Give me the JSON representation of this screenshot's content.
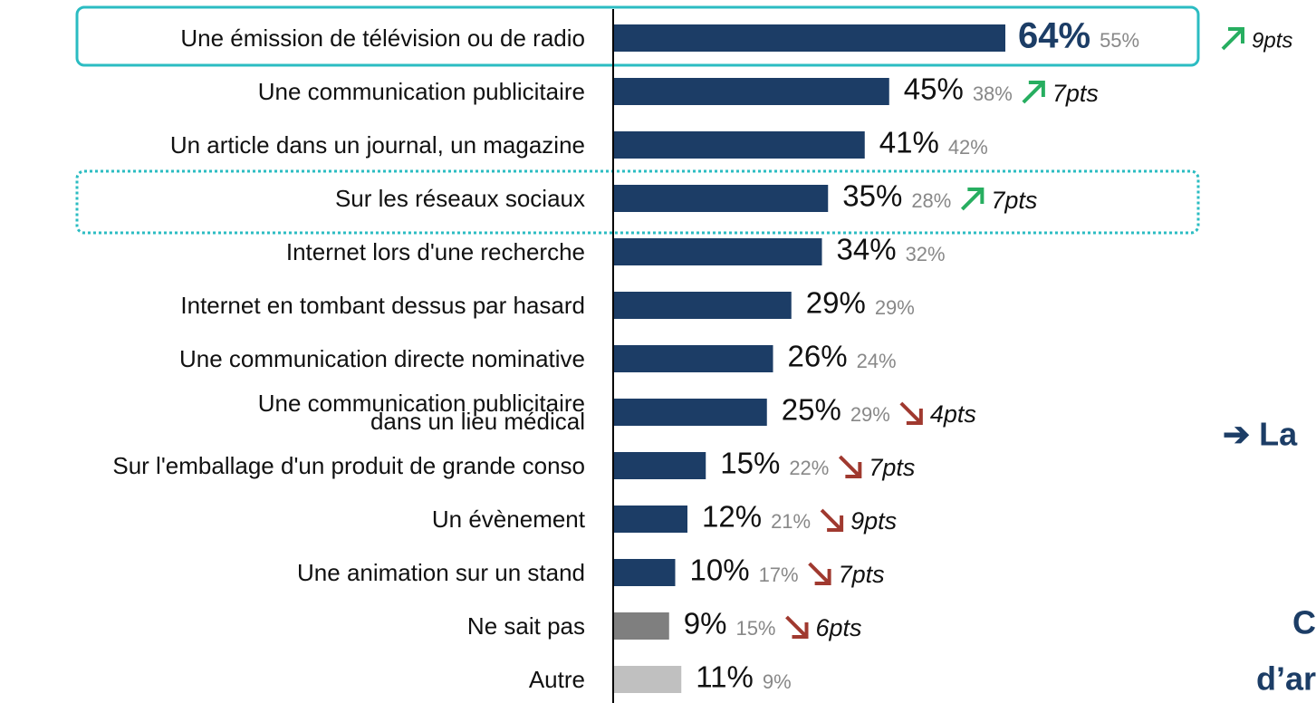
{
  "chart_data": {
    "type": "bar",
    "orientation": "horizontal",
    "categories": [
      "Une émission de télévision ou de radio",
      "Une communication publicitaire",
      "Un article dans un journal, un magazine",
      "Sur les réseaux sociaux",
      "Internet lors d'une recherche",
      "Internet en tombant dessus par hasard",
      "Une communication directe nominative",
      "Une communication publicitaire\ndans un lieu médical",
      "Sur l'emballage d'un produit de grande conso",
      "Un évènement",
      "Une animation sur un stand",
      "Ne sait pas",
      "Autre"
    ],
    "values": [
      64,
      45,
      41,
      35,
      34,
      29,
      26,
      25,
      15,
      12,
      10,
      9,
      11
    ],
    "value_labels": [
      "64%",
      "45%",
      "41%",
      "35%",
      "34%",
      "29%",
      "26%",
      "25%",
      "15%",
      "12%",
      "10%",
      "9%",
      "11%"
    ],
    "previous_values": [
      55,
      38,
      42,
      28,
      32,
      29,
      24,
      29,
      22,
      21,
      17,
      15,
      9
    ],
    "previous_labels": [
      "55%",
      "38%",
      "42%",
      "28%",
      "32%",
      "29%",
      "24%",
      "29%",
      "22%",
      "21%",
      "17%",
      "15%",
      "9%"
    ],
    "changes": [
      9,
      7,
      null,
      7,
      null,
      null,
      null,
      -4,
      -7,
      -9,
      -7,
      -6,
      null
    ],
    "change_labels": [
      "9pts",
      "7pts",
      null,
      "7pts",
      null,
      null,
      null,
      "4pts",
      "7pts",
      "9pts",
      "7pts",
      "6pts",
      null
    ],
    "colors": [
      "#1c3d66",
      "#1c3d66",
      "#1c3d66",
      "#1c3d66",
      "#1c3d66",
      "#1c3d66",
      "#1c3d66",
      "#1c3d66",
      "#1c3d66",
      "#1c3d66",
      "#1c3d66",
      "#7f7f7f",
      "#c0c0c0"
    ],
    "up_color": "#27ae60",
    "down_color": "#a0392f",
    "xlim": [
      0,
      100
    ],
    "annotations": [
      "➔ La",
      "C",
      "d’ar"
    ]
  }
}
